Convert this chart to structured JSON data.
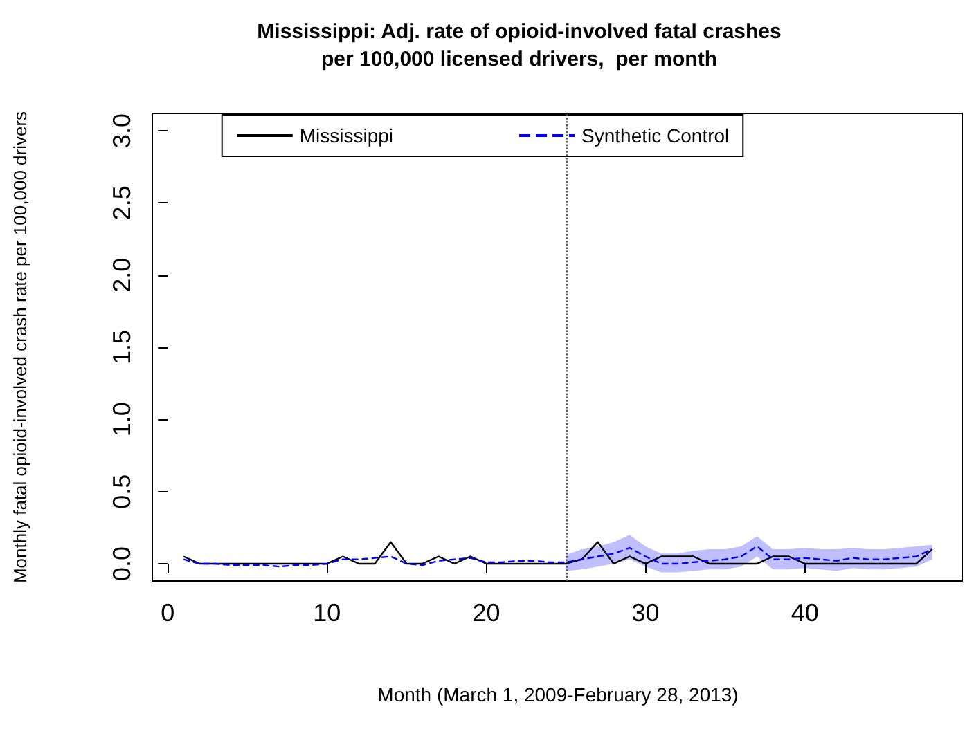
{
  "chart_data": {
    "type": "line",
    "title": "Mississippi: Adj. rate of opioid-involved fatal crashes\nper 100,000 licensed drivers,  per month",
    "xlabel": "Month (March 1, 2009-February 28, 2013)",
    "ylabel": "Monthly fatal opioid-involved crash rate per 100,000 drivers",
    "x": [
      1,
      2,
      3,
      4,
      5,
      6,
      7,
      8,
      9,
      10,
      11,
      12,
      13,
      14,
      15,
      16,
      17,
      18,
      19,
      20,
      21,
      22,
      23,
      24,
      25,
      26,
      27,
      28,
      29,
      30,
      31,
      32,
      33,
      34,
      35,
      36,
      37,
      38,
      39,
      40,
      41,
      42,
      43,
      44,
      45,
      46,
      47,
      48
    ],
    "series": [
      {
        "name": "Mississippi",
        "color": "#000000",
        "line_style": "solid",
        "values": [
          0.05,
          0,
          0,
          0,
          0,
          0,
          0,
          0,
          0,
          0,
          0.05,
          0,
          0,
          0.15,
          0,
          0,
          0.05,
          0,
          0.05,
          0,
          0,
          0,
          0,
          0,
          0,
          0.03,
          0.15,
          0,
          0.05,
          0,
          0.05,
          0.05,
          0.05,
          0,
          0,
          0,
          0,
          0.05,
          0.05,
          0,
          0,
          0,
          0,
          0,
          0,
          0,
          0,
          0.1
        ]
      },
      {
        "name": "Synthetic Control",
        "color": "#0000ff",
        "line_style": "dashed",
        "values": [
          0.03,
          0,
          0,
          -0.01,
          -0.01,
          -0.01,
          -0.02,
          -0.01,
          -0.01,
          0,
          0.03,
          0.03,
          0.04,
          0.05,
          0,
          -0.01,
          0.02,
          0.03,
          0.04,
          0.01,
          0.01,
          0.02,
          0.02,
          0.01,
          0.01,
          0.03,
          0.05,
          0.07,
          0.11,
          0.05,
          0,
          0,
          0.01,
          0.02,
          0.03,
          0.05,
          0.12,
          0.03,
          0.03,
          0.04,
          0.03,
          0.02,
          0.04,
          0.03,
          0.03,
          0.04,
          0.05,
          0.1
        ],
        "lower": [
          null,
          null,
          null,
          null,
          null,
          null,
          null,
          null,
          null,
          null,
          null,
          null,
          null,
          null,
          null,
          null,
          null,
          null,
          null,
          null,
          null,
          null,
          null,
          null,
          -0.05,
          -0.04,
          -0.02,
          0,
          0.03,
          -0.02,
          -0.06,
          -0.06,
          -0.05,
          -0.04,
          -0.04,
          -0.02,
          0.05,
          -0.04,
          -0.04,
          -0.03,
          -0.04,
          -0.05,
          -0.03,
          -0.04,
          -0.04,
          -0.03,
          -0.02,
          0.03
        ],
        "upper": [
          null,
          null,
          null,
          null,
          null,
          null,
          null,
          null,
          null,
          null,
          null,
          null,
          null,
          null,
          null,
          null,
          null,
          null,
          null,
          null,
          null,
          null,
          null,
          null,
          0.06,
          0.1,
          0.12,
          0.15,
          0.2,
          0.12,
          0.07,
          0.07,
          0.09,
          0.1,
          0.1,
          0.12,
          0.19,
          0.1,
          0.1,
          0.11,
          0.1,
          0.1,
          0.11,
          0.1,
          0.1,
          0.11,
          0.12,
          0.13
        ]
      }
    ],
    "xlim": [
      -0.88,
      49.88
    ],
    "xticks": [
      0,
      10,
      20,
      30,
      40
    ],
    "ylim": [
      -0.12,
      3.12
    ],
    "yticks": [
      {
        "value": 0,
        "label": "0.0"
      },
      {
        "value": 0.5,
        "label": "0.5"
      },
      {
        "value": 1,
        "label": "1.0"
      },
      {
        "value": 1.5,
        "label": "1.5"
      },
      {
        "value": 2,
        "label": "2.0"
      },
      {
        "value": 2.5,
        "label": "2.5"
      },
      {
        "value": 3,
        "label": "3.0"
      }
    ],
    "ref_lines": [
      {
        "axis": "x",
        "value": 25,
        "line_style": "dotted",
        "color": "#555555"
      }
    ],
    "grid": false,
    "legend": "top",
    "marker": "none"
  }
}
